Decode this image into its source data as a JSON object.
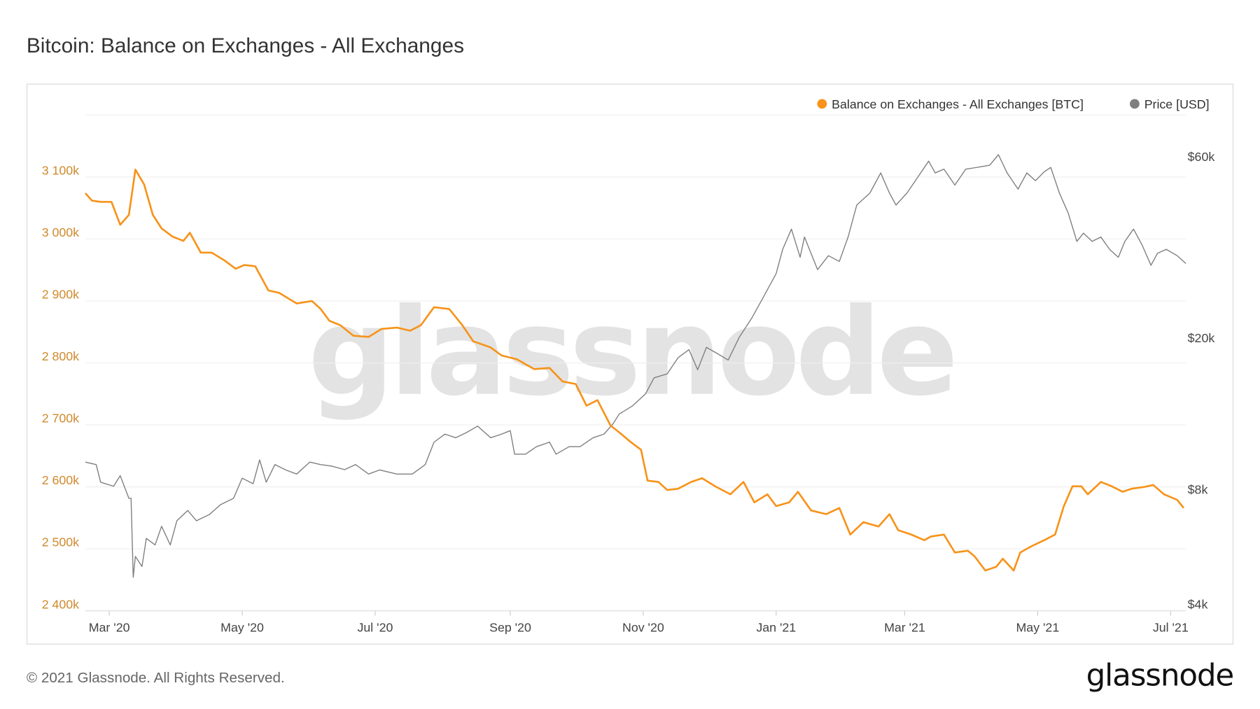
{
  "header": {
    "title": "Bitcoin: Balance on Exchanges - All Exchanges"
  },
  "footer": {
    "copyright": "© 2021 Glassnode. All Rights Reserved.",
    "logo": "glassnode"
  },
  "watermark": "glassnode",
  "colors": {
    "balance": "#f7931a",
    "price": "#7f7f7f",
    "left_axis_text": "#d08a2c"
  },
  "chart_data": {
    "type": "line",
    "title": "Bitcoin: Balance on Exchanges - All Exchanges",
    "legend_position": "top-right",
    "grid": true,
    "x_axis": {
      "type": "date",
      "range": [
        "2020-02-19",
        "2021-07-08"
      ],
      "ticks": [
        {
          "date": "2020-03-01",
          "label": "Mar '20"
        },
        {
          "date": "2020-05-01",
          "label": "May '20"
        },
        {
          "date": "2020-07-01",
          "label": "Jul '20"
        },
        {
          "date": "2020-09-01",
          "label": "Sep '20"
        },
        {
          "date": "2020-11-01",
          "label": "Nov '20"
        },
        {
          "date": "2021-01-01",
          "label": "Jan '21"
        },
        {
          "date": "2021-03-01",
          "label": "Mar '21"
        },
        {
          "date": "2021-05-01",
          "label": "May '21"
        },
        {
          "date": "2021-07-01",
          "label": "Jul '21"
        }
      ]
    },
    "y_left": {
      "scale": "linear",
      "range": [
        2400000,
        3200000
      ],
      "ticks": [
        {
          "value": 3100000,
          "label": "3 100k"
        },
        {
          "value": 3000000,
          "label": "3 000k"
        },
        {
          "value": 2900000,
          "label": "2 900k"
        },
        {
          "value": 2800000,
          "label": "2 800k"
        },
        {
          "value": 2700000,
          "label": "2 700k"
        },
        {
          "value": 2600000,
          "label": "2 600k"
        },
        {
          "value": 2500000,
          "label": "2 500k"
        },
        {
          "value": 2400000,
          "label": "2 400k"
        }
      ]
    },
    "y_right": {
      "scale": "log",
      "range": [
        4000,
        60000
      ],
      "ticks": [
        {
          "value": 60000,
          "label": "$60k"
        },
        {
          "value": 20000,
          "label": "$20k"
        },
        {
          "value": 8000,
          "label": "$8k"
        },
        {
          "value": 4000,
          "label": "$4k"
        }
      ]
    },
    "series": [
      {
        "name": "Balance on Exchanges - All Exchanges [BTC]",
        "axis": "left",
        "color": "#f7931a",
        "points": [
          [
            "2020-02-19",
            3074000
          ],
          [
            "2020-02-22",
            3062000
          ],
          [
            "2020-02-26",
            3060000
          ],
          [
            "2020-03-02",
            3060000
          ],
          [
            "2020-03-06",
            3023000
          ],
          [
            "2020-03-10",
            3039000
          ],
          [
            "2020-03-13",
            3112000
          ],
          [
            "2020-03-17",
            3088000
          ],
          [
            "2020-03-21",
            3039000
          ],
          [
            "2020-03-25",
            3017000
          ],
          [
            "2020-03-30",
            3004000
          ],
          [
            "2020-04-04",
            2997000
          ],
          [
            "2020-04-07",
            3010000
          ],
          [
            "2020-04-12",
            2978000
          ],
          [
            "2020-04-17",
            2978000
          ],
          [
            "2020-04-23",
            2965000
          ],
          [
            "2020-04-28",
            2952000
          ],
          [
            "2020-05-02",
            2958000
          ],
          [
            "2020-05-07",
            2956000
          ],
          [
            "2020-05-13",
            2917000
          ],
          [
            "2020-05-18",
            2913000
          ],
          [
            "2020-05-26",
            2896000
          ],
          [
            "2020-06-02",
            2900000
          ],
          [
            "2020-06-06",
            2887000
          ],
          [
            "2020-06-10",
            2868000
          ],
          [
            "2020-06-15",
            2861000
          ],
          [
            "2020-06-21",
            2844000
          ],
          [
            "2020-06-28",
            2842000
          ],
          [
            "2020-07-04",
            2855000
          ],
          [
            "2020-07-11",
            2857000
          ],
          [
            "2020-07-17",
            2852000
          ],
          [
            "2020-07-22",
            2861000
          ],
          [
            "2020-07-28",
            2890000
          ],
          [
            "2020-08-04",
            2887000
          ],
          [
            "2020-08-10",
            2861000
          ],
          [
            "2020-08-15",
            2835000
          ],
          [
            "2020-08-23",
            2825000
          ],
          [
            "2020-08-28",
            2812000
          ],
          [
            "2020-09-04",
            2806000
          ],
          [
            "2020-09-12",
            2790000
          ],
          [
            "2020-09-19",
            2792000
          ],
          [
            "2020-09-25",
            2770000
          ],
          [
            "2020-10-01",
            2766000
          ],
          [
            "2020-10-06",
            2731000
          ],
          [
            "2020-10-11",
            2740000
          ],
          [
            "2020-10-17",
            2699000
          ],
          [
            "2020-10-21",
            2688000
          ],
          [
            "2020-10-26",
            2673000
          ],
          [
            "2020-10-31",
            2660000
          ],
          [
            "2020-11-03",
            2610000
          ],
          [
            "2020-11-08",
            2608000
          ],
          [
            "2020-11-12",
            2595000
          ],
          [
            "2020-11-17",
            2597000
          ],
          [
            "2020-11-23",
            2608000
          ],
          [
            "2020-11-28",
            2614000
          ],
          [
            "2020-12-04",
            2601000
          ],
          [
            "2020-12-11",
            2588000
          ],
          [
            "2020-12-17",
            2608000
          ],
          [
            "2020-12-22",
            2575000
          ],
          [
            "2020-12-28",
            2588000
          ],
          [
            "2021-01-01",
            2569000
          ],
          [
            "2021-01-07",
            2575000
          ],
          [
            "2021-01-11",
            2592000
          ],
          [
            "2021-01-17",
            2562000
          ],
          [
            "2021-01-24",
            2556000
          ],
          [
            "2021-01-30",
            2566000
          ],
          [
            "2021-02-04",
            2523000
          ],
          [
            "2021-02-10",
            2543000
          ],
          [
            "2021-02-17",
            2536000
          ],
          [
            "2021-02-22",
            2556000
          ],
          [
            "2021-02-26",
            2530000
          ],
          [
            "2021-03-04",
            2523000
          ],
          [
            "2021-03-10",
            2514000
          ],
          [
            "2021-03-13",
            2520000
          ],
          [
            "2021-03-19",
            2523000
          ],
          [
            "2021-03-24",
            2494000
          ],
          [
            "2021-03-30",
            2497000
          ],
          [
            "2021-04-02",
            2488000
          ],
          [
            "2021-04-07",
            2465000
          ],
          [
            "2021-04-12",
            2471000
          ],
          [
            "2021-04-15",
            2484000
          ],
          [
            "2021-04-20",
            2465000
          ],
          [
            "2021-04-23",
            2494000
          ],
          [
            "2021-04-28",
            2504000
          ],
          [
            "2021-05-04",
            2514000
          ],
          [
            "2021-05-09",
            2523000
          ],
          [
            "2021-05-13",
            2569000
          ],
          [
            "2021-05-17",
            2601000
          ],
          [
            "2021-05-21",
            2601000
          ],
          [
            "2021-05-24",
            2588000
          ],
          [
            "2021-05-30",
            2608000
          ],
          [
            "2021-06-04",
            2601000
          ],
          [
            "2021-06-09",
            2592000
          ],
          [
            "2021-06-13",
            2597000
          ],
          [
            "2021-06-19",
            2600000
          ],
          [
            "2021-06-23",
            2603000
          ],
          [
            "2021-06-28",
            2588000
          ],
          [
            "2021-07-04",
            2579000
          ],
          [
            "2021-07-07",
            2566000
          ]
        ]
      },
      {
        "name": "Price [USD]",
        "axis": "right",
        "color": "#7f7f7f",
        "points": [
          [
            "2020-02-19",
            9840
          ],
          [
            "2020-02-24",
            9690
          ],
          [
            "2020-02-26",
            8710
          ],
          [
            "2020-03-03",
            8500
          ],
          [
            "2020-03-06",
            9060
          ],
          [
            "2020-03-10",
            7900
          ],
          [
            "2020-03-11",
            7900
          ],
          [
            "2020-03-12",
            4900
          ],
          [
            "2020-03-13",
            5560
          ],
          [
            "2020-03-16",
            5230
          ],
          [
            "2020-03-18",
            6200
          ],
          [
            "2020-03-22",
            5960
          ],
          [
            "2020-03-25",
            6670
          ],
          [
            "2020-03-29",
            5960
          ],
          [
            "2020-04-01",
            6900
          ],
          [
            "2020-04-06",
            7340
          ],
          [
            "2020-04-10",
            6900
          ],
          [
            "2020-04-16",
            7170
          ],
          [
            "2020-04-21",
            7600
          ],
          [
            "2020-04-27",
            7900
          ],
          [
            "2020-05-01",
            8920
          ],
          [
            "2020-05-06",
            8630
          ],
          [
            "2020-05-09",
            9970
          ],
          [
            "2020-05-12",
            8710
          ],
          [
            "2020-05-16",
            9690
          ],
          [
            "2020-05-21",
            9380
          ],
          [
            "2020-05-26",
            9150
          ],
          [
            "2020-06-01",
            9840
          ],
          [
            "2020-06-06",
            9690
          ],
          [
            "2020-06-11",
            9600
          ],
          [
            "2020-06-17",
            9400
          ],
          [
            "2020-06-22",
            9690
          ],
          [
            "2020-06-28",
            9150
          ],
          [
            "2020-07-03",
            9380
          ],
          [
            "2020-07-11",
            9150
          ],
          [
            "2020-07-18",
            9150
          ],
          [
            "2020-07-24",
            9690
          ],
          [
            "2020-07-28",
            11100
          ],
          [
            "2020-08-02",
            11650
          ],
          [
            "2020-08-07",
            11400
          ],
          [
            "2020-08-12",
            11770
          ],
          [
            "2020-08-17",
            12230
          ],
          [
            "2020-08-23",
            11400
          ],
          [
            "2020-08-28",
            11650
          ],
          [
            "2020-09-01",
            11900
          ],
          [
            "2020-09-03",
            10320
          ],
          [
            "2020-09-08",
            10320
          ],
          [
            "2020-09-13",
            10800
          ],
          [
            "2020-09-19",
            11100
          ],
          [
            "2020-09-22",
            10320
          ],
          [
            "2020-09-28",
            10800
          ],
          [
            "2020-10-03",
            10800
          ],
          [
            "2020-10-09",
            11400
          ],
          [
            "2020-10-14",
            11650
          ],
          [
            "2020-10-18",
            12370
          ],
          [
            "2020-10-21",
            13160
          ],
          [
            "2020-10-27",
            13810
          ],
          [
            "2020-11-02",
            14860
          ],
          [
            "2020-11-06",
            16380
          ],
          [
            "2020-11-12",
            16780
          ],
          [
            "2020-11-17",
            18500
          ],
          [
            "2020-11-22",
            19420
          ],
          [
            "2020-11-26",
            17200
          ],
          [
            "2020-11-30",
            19700
          ],
          [
            "2020-12-05",
            18970
          ],
          [
            "2020-12-10",
            18240
          ],
          [
            "2020-12-15",
            20900
          ],
          [
            "2020-12-21",
            23600
          ],
          [
            "2020-12-26",
            26600
          ],
          [
            "2021-01-01",
            30800
          ],
          [
            "2021-01-04",
            35650
          ],
          [
            "2021-01-08",
            40300
          ],
          [
            "2021-01-12",
            33970
          ],
          [
            "2021-01-14",
            38400
          ],
          [
            "2021-01-20",
            31530
          ],
          [
            "2021-01-25",
            34300
          ],
          [
            "2021-01-30",
            33130
          ],
          [
            "2021-02-03",
            38400
          ],
          [
            "2021-02-07",
            46600
          ],
          [
            "2021-02-13",
            50100
          ],
          [
            "2021-02-18",
            56600
          ],
          [
            "2021-02-22",
            50100
          ],
          [
            "2021-02-25",
            46600
          ],
          [
            "2021-03-02",
            50100
          ],
          [
            "2021-03-07",
            55200
          ],
          [
            "2021-03-12",
            60800
          ],
          [
            "2021-03-15",
            56600
          ],
          [
            "2021-03-19",
            57900
          ],
          [
            "2021-03-24",
            52600
          ],
          [
            "2021-03-29",
            57900
          ],
          [
            "2021-04-03",
            58500
          ],
          [
            "2021-04-09",
            59300
          ],
          [
            "2021-04-13",
            63200
          ],
          [
            "2021-04-17",
            56600
          ],
          [
            "2021-04-22",
            51300
          ],
          [
            "2021-04-26",
            56600
          ],
          [
            "2021-04-30",
            54000
          ],
          [
            "2021-05-04",
            57000
          ],
          [
            "2021-05-07",
            58500
          ],
          [
            "2021-05-11",
            50100
          ],
          [
            "2021-05-15",
            44400
          ],
          [
            "2021-05-19",
            37400
          ],
          [
            "2021-05-22",
            39300
          ],
          [
            "2021-05-26",
            37400
          ],
          [
            "2021-05-30",
            38400
          ],
          [
            "2021-06-03",
            35650
          ],
          [
            "2021-06-07",
            33970
          ],
          [
            "2021-06-10",
            37400
          ],
          [
            "2021-06-14",
            40300
          ],
          [
            "2021-06-18",
            36500
          ],
          [
            "2021-06-22",
            32360
          ],
          [
            "2021-06-25",
            34800
          ],
          [
            "2021-06-29",
            35650
          ],
          [
            "2021-07-04",
            34300
          ],
          [
            "2021-07-08",
            32700
          ]
        ]
      }
    ]
  }
}
